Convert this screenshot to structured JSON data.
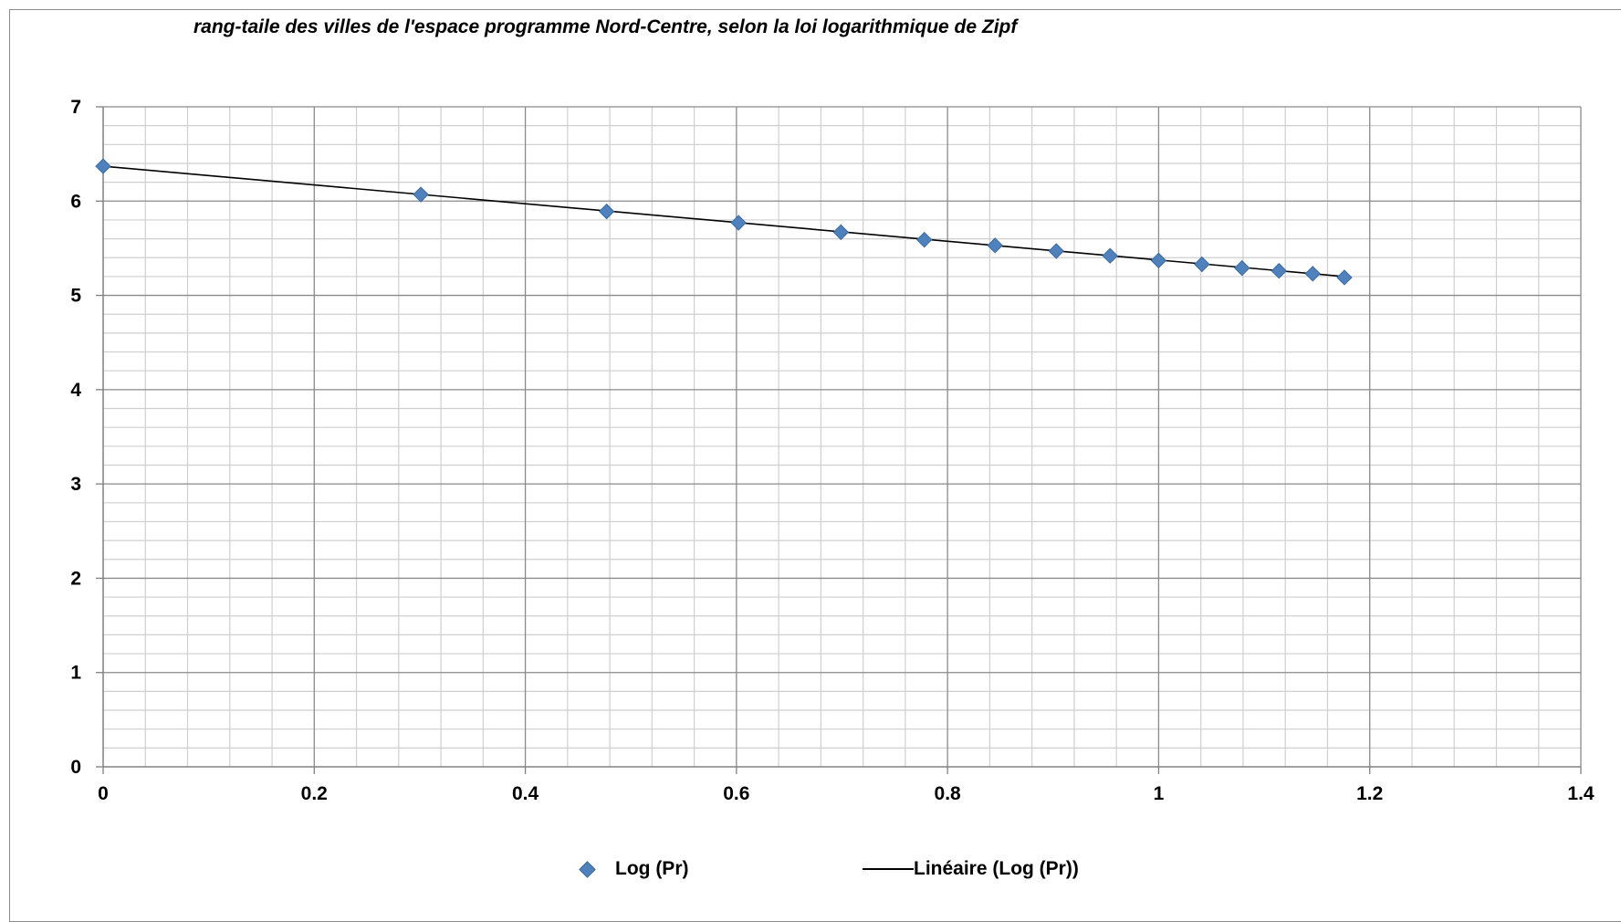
{
  "chart_data": {
    "type": "scatter",
    "title": "rang-taile des villes de l'espace programme Nord-Centre, selon la loi logarithmique de Zipf",
    "xlabel": "",
    "ylabel": "",
    "xlim": [
      0,
      1.4
    ],
    "ylim": [
      0,
      7
    ],
    "x_ticks": [
      "0",
      "0.2",
      "0.4",
      "0.6",
      "0.8",
      "1",
      "1.2",
      "1.4"
    ],
    "y_ticks": [
      "0",
      "1",
      "2",
      "3",
      "4",
      "5",
      "6",
      "7"
    ],
    "grid": "major and minor",
    "legend_position": "bottom",
    "series": [
      {
        "name": "Log (Pr)",
        "marker": "diamond",
        "color": "#4f81bd",
        "x": [
          0,
          0.301,
          0.477,
          0.602,
          0.699,
          0.778,
          0.845,
          0.903,
          0.954,
          1.0,
          1.041,
          1.079,
          1.114,
          1.146,
          1.176
        ],
        "y": [
          6.37,
          6.07,
          5.89,
          5.77,
          5.67,
          5.59,
          5.53,
          5.47,
          5.42,
          5.37,
          5.33,
          5.29,
          5.26,
          5.23,
          5.19
        ]
      },
      {
        "name": "Linéaire (Log (Pr))",
        "type": "trendline",
        "color": "#000000",
        "x": [
          0,
          1.176
        ],
        "y": [
          6.37,
          5.2
        ]
      }
    ]
  }
}
